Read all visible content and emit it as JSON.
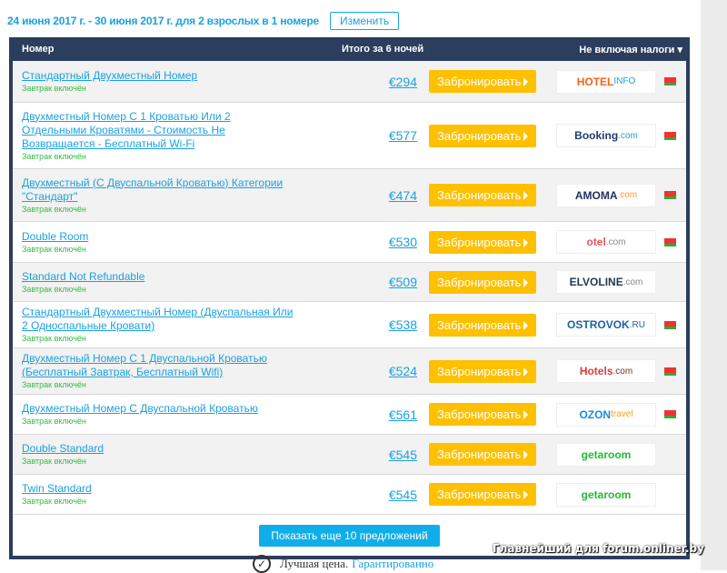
{
  "search": {
    "dates": "24 июня 2017 г. - 30 июня 2017 г. для 2 взрослых в 1 номере",
    "change_label": "Изменить"
  },
  "table": {
    "col_room": "Номер",
    "col_total": "Итого за 6 ночей",
    "col_tax": "Не включая налоги ▾",
    "book_label": "Забронировать",
    "rows": [
      {
        "name": "Стандартный Двухместный Номер",
        "breakfast": "Завтрак включён",
        "price": "€294",
        "logo": [
          "HOTEL ",
          "INFO"
        ],
        "colors": [
          "#f7631b",
          "#1aa3dc"
        ],
        "flag": true
      },
      {
        "name": "Двухместный Номер С 1 Кроватью Или 2 Отдельными Кроватями - Стоимость Не Возвращается - Бесплатный Wi-Fi",
        "breakfast": "Завтрак включён",
        "price": "€577",
        "logo": [
          "Booking",
          ".com"
        ],
        "colors": [
          "#213a6e",
          "#1aa3dc"
        ],
        "flag": true
      },
      {
        "name": "Двухместный (С Двуспальной Кроватью) Категории \"Стандарт\"",
        "breakfast": "Завтрак включён",
        "price": "€474",
        "logo": [
          "AMOMA",
          ".com"
        ],
        "colors": [
          "#1f2f5c",
          "#f39a2b"
        ],
        "flag": true
      },
      {
        "name": "Double Room",
        "breakfast": "Завтрак включён",
        "price": "€530",
        "logo": [
          "otel",
          ".com"
        ],
        "colors": [
          "#e9565a",
          "#888888"
        ],
        "flag": true
      },
      {
        "name": "Standard Not Refundable",
        "breakfast": "Завтрак включён",
        "price": "€509",
        "logo": [
          "ELVOLINE",
          ".com"
        ],
        "colors": [
          "#1f3a4d",
          "#888888"
        ],
        "flag": false
      },
      {
        "name": "Стандартный Двухместный Номер (Двуспальная Или 2 Односпальные Кровати)",
        "breakfast": "Завтрак включён",
        "price": "€538",
        "logo": [
          "OSTROVOK",
          ".RU"
        ],
        "colors": [
          "#1e5fa8",
          "#1e5fa8"
        ],
        "flag": true
      },
      {
        "name": "Двухместный Номер С 1 Двуспальной Кроватью (Бесплатный Завтрак, Бесплатный Wifi)",
        "breakfast": "Завтрак включён",
        "price": "€524",
        "logo": [
          "Hotels",
          ".com"
        ],
        "colors": [
          "#e23a3a",
          "#7a2a2a"
        ],
        "flag": true
      },
      {
        "name": "Двухместный Номер С Двуспальной Кроватью",
        "breakfast": "Завтрак включён",
        "price": "€561",
        "logo": [
          "OZON",
          " travel"
        ],
        "colors": [
          "#1a8ad8",
          "#f3a21b"
        ],
        "flag": true
      },
      {
        "name": "Double Standard",
        "breakfast": "Завтрак включён",
        "price": "€545",
        "logo": [
          "getaroom",
          ""
        ],
        "colors": [
          "#22bb33",
          "#22bb33"
        ],
        "flag": false
      },
      {
        "name": "Twin Standard",
        "breakfast": "Завтрак включён",
        "price": "€545",
        "logo": [
          "getaroom",
          ""
        ],
        "colors": [
          "#22bb33",
          "#22bb33"
        ],
        "flag": false
      }
    ],
    "more_label": "Показать еще 10 предложений"
  },
  "footer": {
    "best": "Лучшая цена.",
    "guarantee": "Гарантированно"
  },
  "watermark": "Главнейший для forum.onliner.by"
}
